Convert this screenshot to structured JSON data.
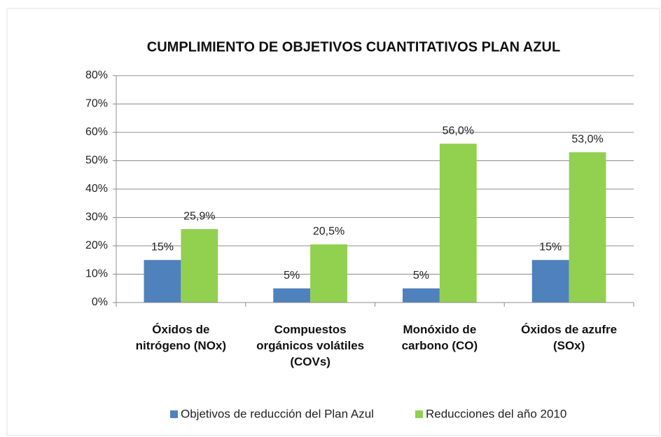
{
  "chart_data": {
    "type": "bar",
    "title": "CUMPLIMIENTO DE OBJETIVOS CUANTITATIVOS PLAN AZUL",
    "categories": [
      "Óxidos de nitrógeno (NOx)",
      "Compuestos orgánicos volátiles (COVs)",
      "Monóxido de carbono (CO)",
      "Óxidos de azufre (SOx)"
    ],
    "series": [
      {
        "name": "Objetivos de reducción del Plan Azul",
        "color": "#4f81bd",
        "values": [
          15,
          5,
          5,
          15
        ],
        "value_labels": [
          "15%",
          "5%",
          "5%",
          "15%"
        ]
      },
      {
        "name": "Reducciones del año 2010",
        "color": "#92d050",
        "values": [
          25.9,
          20.5,
          56.0,
          53.0
        ],
        "value_labels": [
          "25,9%",
          "20,5%",
          "56,0%",
          "53,0%"
        ]
      }
    ],
    "ylim": [
      0,
      80
    ],
    "yticks": [
      {
        "value": 0,
        "label": "0%"
      },
      {
        "value": 10,
        "label": "10%"
      },
      {
        "value": 20,
        "label": "20%"
      },
      {
        "value": 30,
        "label": "30%"
      },
      {
        "value": 40,
        "label": "40%"
      },
      {
        "value": 50,
        "label": "50%"
      },
      {
        "value": 60,
        "label": "60%"
      },
      {
        "value": 70,
        "label": "70%"
      },
      {
        "value": 80,
        "label": "80%"
      }
    ],
    "grid": true,
    "legend": "bottom"
  }
}
